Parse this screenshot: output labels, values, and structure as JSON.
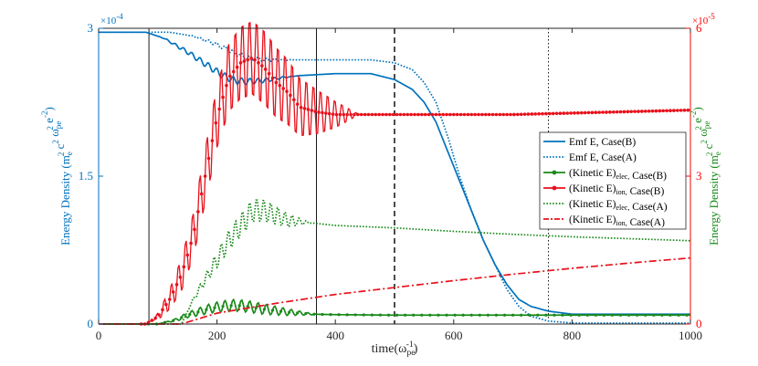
{
  "chart_data": {
    "type": "line",
    "xlabel": "time(ω_pe^-1)",
    "xlim": [
      0,
      1000
    ],
    "x_ticks": [
      "0",
      "200",
      "400",
      "600",
      "800",
      "1000"
    ],
    "left_axis": {
      "label": "Energy Density (m_e^2 c^2 ω_pe^2 e^-2)",
      "color": "#0072BD",
      "ylim": [
        0,
        0.0003
      ],
      "multiplier": "×10^-4",
      "ticks": [
        "0",
        "1.5",
        "3"
      ]
    },
    "right_axis": {
      "label": "Energy Density (m_e^2 c^2 ω_pe^2 e^-2)",
      "label_color": "#1a8a1a",
      "tick_color": "#ff0000",
      "ylim": [
        0,
        6e-05
      ],
      "multiplier": "×10^-5",
      "ticks": [
        "0",
        "3",
        "6"
      ]
    },
    "vertical_lines": [
      {
        "x": 85,
        "style": "solid"
      },
      {
        "x": 368,
        "style": "solid"
      },
      {
        "x": 500,
        "style": "dashed"
      },
      {
        "x": 760,
        "style": "dotted"
      }
    ],
    "series": [
      {
        "name": "Emf E, Case(B)",
        "axis": "left",
        "color": "#0072BD",
        "style": "solid",
        "points": [
          [
            0,
            0.000296
          ],
          [
            80,
            0.000296
          ],
          [
            110,
            0.00029
          ],
          [
            130,
            0.000283
          ],
          [
            150,
            0.000276
          ],
          [
            170,
            0.000268
          ],
          [
            190,
            0.00026
          ],
          [
            210,
            0.000252
          ],
          [
            230,
            0.000247
          ],
          [
            250,
            0.000246
          ],
          [
            280,
            0.000247
          ],
          [
            310,
            0.00025
          ],
          [
            340,
            0.000252
          ],
          [
            370,
            0.000253
          ],
          [
            400,
            0.000254
          ],
          [
            460,
            0.000254
          ],
          [
            500,
            0.000248
          ],
          [
            530,
            0.000238
          ],
          [
            550,
            0.000225
          ],
          [
            570,
            0.000205
          ],
          [
            590,
            0.000175
          ],
          [
            610,
            0.000145
          ],
          [
            630,
            0.000115
          ],
          [
            650,
            8.5e-05
          ],
          [
            670,
            6e-05
          ],
          [
            690,
            4e-05
          ],
          [
            710,
            2.5e-05
          ],
          [
            730,
            1.8e-05
          ],
          [
            760,
            1.3e-05
          ],
          [
            800,
            1e-05
          ],
          [
            900,
            1e-05
          ],
          [
            1000,
            1e-05
          ]
        ]
      },
      {
        "name": "Emf E, Case(A)",
        "axis": "left",
        "color": "#0072BD",
        "style": "dotted",
        "points": [
          [
            0,
            0.000296
          ],
          [
            120,
            0.000296
          ],
          [
            160,
            0.000292
          ],
          [
            190,
            0.000286
          ],
          [
            220,
            0.000278
          ],
          [
            250,
            0.00027
          ],
          [
            280,
            0.000268
          ],
          [
            320,
            0.000268
          ],
          [
            400,
            0.000268
          ],
          [
            460,
            0.000268
          ],
          [
            500,
            0.000265
          ],
          [
            530,
            0.000258
          ],
          [
            550,
            0.000245
          ],
          [
            570,
            0.000225
          ],
          [
            590,
            0.00019
          ],
          [
            610,
            0.00015
          ],
          [
            630,
            0.000115
          ],
          [
            650,
            8.5e-05
          ],
          [
            670,
            6e-05
          ],
          [
            690,
            3.5e-05
          ],
          [
            710,
            1.8e-05
          ],
          [
            730,
            8e-06
          ],
          [
            760,
            3e-06
          ],
          [
            800,
            1e-06
          ],
          [
            1000,
            1e-06
          ]
        ]
      },
      {
        "name": "(Kinetic E)_elec, Case(B)",
        "axis": "right",
        "color": "#1a8a1a",
        "style": "solid-marker",
        "points": [
          [
            0,
            0
          ],
          [
            100,
            0
          ],
          [
            130,
            8e-07
          ],
          [
            150,
            1.8e-06
          ],
          [
            170,
            2.5e-06
          ],
          [
            190,
            3.2e-06
          ],
          [
            210,
            3.6e-06
          ],
          [
            230,
            3.8e-06
          ],
          [
            250,
            3.6e-06
          ],
          [
            280,
            3e-06
          ],
          [
            320,
            2.4e-06
          ],
          [
            360,
            2e-06
          ],
          [
            400,
            1.9e-06
          ],
          [
            500,
            1.8e-06
          ],
          [
            600,
            1.8e-06
          ],
          [
            800,
            1.8e-06
          ],
          [
            1000,
            1.8e-06
          ]
        ]
      },
      {
        "name": "(Kinetic E)_ion, Case(B)",
        "axis": "right",
        "color": "#e8111b",
        "style": "solid-marker",
        "points": [
          [
            0,
            0
          ],
          [
            80,
            0
          ],
          [
            100,
            1.5e-06
          ],
          [
            120,
            5e-06
          ],
          [
            140,
            1e-05
          ],
          [
            160,
            1.8e-05
          ],
          [
            180,
            3e-05
          ],
          [
            200,
            4.2e-05
          ],
          [
            220,
            5e-05
          ],
          [
            240,
            5.3e-05
          ],
          [
            260,
            5.4e-05
          ],
          [
            280,
            5.2e-05
          ],
          [
            300,
            4.9e-05
          ],
          [
            320,
            4.7e-05
          ],
          [
            340,
            4.4e-05
          ],
          [
            370,
            4.3e-05
          ],
          [
            400,
            4.25e-05
          ],
          [
            450,
            4.25e-05
          ],
          [
            500,
            4.25e-05
          ],
          [
            600,
            4.25e-05
          ],
          [
            700,
            4.25e-05
          ],
          [
            800,
            4.28e-05
          ],
          [
            900,
            4.31e-05
          ],
          [
            1000,
            4.34e-05
          ]
        ]
      },
      {
        "name": "(Kinetic E)_elec, Case(A)",
        "axis": "right",
        "color": "#1a8a1a",
        "style": "dotted",
        "points": [
          [
            0,
            0
          ],
          [
            140,
            0
          ],
          [
            160,
            5e-06
          ],
          [
            180,
            9e-06
          ],
          [
            200,
            1.3e-05
          ],
          [
            220,
            1.7e-05
          ],
          [
            240,
            2e-05
          ],
          [
            260,
            2.3e-05
          ],
          [
            280,
            2.3e-05
          ],
          [
            300,
            2.2e-05
          ],
          [
            320,
            2.1e-05
          ],
          [
            360,
            2.05e-05
          ],
          [
            400,
            2e-05
          ],
          [
            500,
            1.95e-05
          ],
          [
            600,
            1.88e-05
          ],
          [
            700,
            1.82e-05
          ],
          [
            800,
            1.77e-05
          ],
          [
            900,
            1.73e-05
          ],
          [
            1000,
            1.69e-05
          ]
        ]
      },
      {
        "name": "(Kinetic E)_ion, Case(A)",
        "axis": "right",
        "color": "#e8111b",
        "style": "dashdot",
        "points": [
          [
            0,
            0
          ],
          [
            140,
            0
          ],
          [
            200,
            2.2e-06
          ],
          [
            300,
            4.2e-06
          ],
          [
            400,
            6e-06
          ],
          [
            500,
            7.4e-06
          ],
          [
            600,
            8.8e-06
          ],
          [
            700,
            1.01e-05
          ],
          [
            800,
            1.13e-05
          ],
          [
            900,
            1.24e-05
          ],
          [
            1000,
            1.34e-05
          ]
        ]
      }
    ]
  }
}
